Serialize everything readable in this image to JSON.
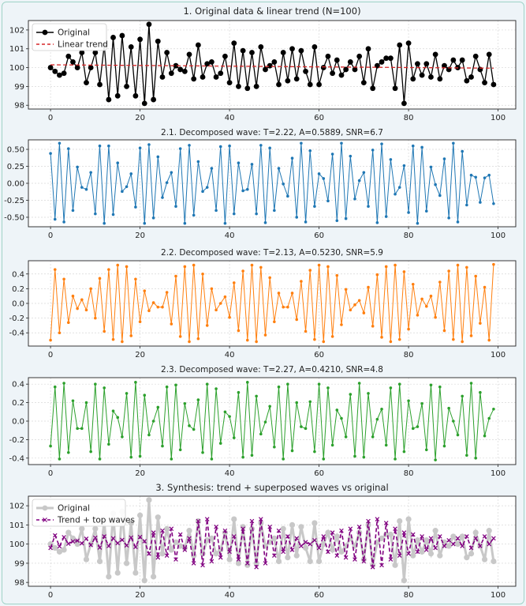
{
  "chart_data": [
    {
      "type": "line",
      "title": "1. Original data & linear trend (N=100)",
      "xlim": [
        -4.95,
        103.95
      ],
      "ylim": [
        97.8,
        102.5
      ],
      "xticks": [
        0,
        20,
        40,
        60,
        80,
        100
      ],
      "yticks": [
        98,
        99,
        100,
        101,
        102
      ],
      "legend_position": "top-left",
      "grid": true,
      "series": [
        {
          "name": "Original",
          "color": "#000000",
          "style": "solid",
          "marker": "circle",
          "y": [
            100.0,
            99.8,
            99.6,
            99.7,
            100.6,
            100.3,
            100.0,
            100.8,
            99.2,
            100.0,
            100.8,
            99.1,
            101.2,
            98.3,
            101.6,
            98.5,
            101.7,
            99.0,
            101.1,
            98.5,
            101.5,
            98.1,
            102.3,
            98.3,
            101.4,
            99.5,
            100.8,
            99.7,
            100.1,
            99.9,
            99.8,
            100.7,
            99.4,
            101.2,
            99.5,
            100.2,
            100.3,
            99.5,
            99.7,
            100.6,
            99.2,
            101.3,
            99.0,
            100.9,
            98.9,
            100.8,
            99.0,
            101.1,
            99.9,
            100.1,
            100.3,
            99.1,
            100.8,
            99.3,
            101.0,
            99.4,
            100.9,
            99.8,
            99.1,
            101.1,
            99.1,
            100.0,
            100.6,
            99.7,
            100.4,
            99.6,
            99.9,
            100.3,
            99.9,
            100.6,
            99.2,
            101.0,
            98.9,
            100.1,
            100.3,
            100.5,
            100.5,
            98.9,
            101.2,
            98.1,
            101.3,
            99.4,
            100.2,
            99.6,
            100.2,
            99.5,
            100.7,
            99.4,
            100.1,
            99.9,
            100.4,
            100.0,
            100.4,
            99.3,
            99.5,
            100.6,
            99.9,
            99.2,
            100.7,
            99.1
          ]
        },
        {
          "name": "Linear trend",
          "color": "#d62728",
          "style": "dashed",
          "y": [
            100.15,
            99.97
          ]
        }
      ]
    },
    {
      "type": "line",
      "title": "2.1. Decomposed wave: T=2.22, A=0.5889, SNR=6.7",
      "xlim": [
        -4.95,
        103.95
      ],
      "ylim": [
        -0.64,
        0.64
      ],
      "xticks": [
        0,
        20,
        40,
        60,
        80,
        100
      ],
      "yticks": [
        "0.50",
        "0.25",
        "0.00",
        "-0.25",
        "-0.50"
      ],
      "yticks_values": [
        0.5,
        0.25,
        0,
        -0.25,
        -0.5
      ],
      "grid": true,
      "series": [
        {
          "color": "#1f77b4",
          "marker": "dot",
          "y": [
            0.44,
            -0.53,
            0.59,
            -0.57,
            0.51,
            -0.4,
            0.24,
            -0.06,
            -0.09,
            0.16,
            -0.45,
            0.55,
            -0.59,
            0.55,
            -0.46,
            0.3,
            -0.12,
            -0.05,
            0.14,
            -0.35,
            0.52,
            -0.59,
            0.57,
            -0.51,
            0.39,
            -0.21,
            0.01,
            0.16,
            -0.34,
            0.51,
            -0.59,
            0.56,
            -0.47,
            0.32,
            -0.12,
            -0.06,
            0.22,
            -0.4,
            0.54,
            -0.59,
            0.55,
            -0.45,
            0.3,
            -0.11,
            -0.09,
            0.28,
            -0.45,
            0.56,
            -0.58,
            0.52,
            -0.4,
            0.22,
            -0.01,
            -0.19,
            0.37,
            -0.5,
            0.59,
            -0.57,
            0.48,
            -0.34,
            0.14,
            0.07,
            -0.26,
            0.43,
            -0.55,
            0.59,
            -0.52,
            0.4,
            -0.23,
            0.04,
            0.16,
            -0.34,
            0.49,
            -0.58,
            0.58,
            -0.49,
            0.35,
            -0.16,
            -0.06,
            0.26,
            -0.43,
            0.55,
            -0.59,
            0.53,
            -0.41,
            0.24,
            -0.02,
            -0.18,
            0.36,
            -0.51,
            0.59,
            -0.57,
            0.47,
            -0.32,
            0.12,
            0.09,
            -0.28,
            0.08,
            0.12,
            -0.3
          ]
        }
      ]
    },
    {
      "type": "line",
      "title": "2.2. Decomposed wave: T=2.13, A=0.5230, SNR=5.9",
      "xlim": [
        -4.95,
        103.95
      ],
      "ylim": [
        -0.58,
        0.58
      ],
      "xticks": [
        0,
        20,
        40,
        60,
        80,
        100
      ],
      "yticks": [
        "0.4",
        "0.2",
        "0.0",
        "-0.2",
        "-0.4"
      ],
      "yticks_values": [
        0.4,
        0.2,
        0,
        -0.2,
        -0.4
      ],
      "grid": true,
      "series": [
        {
          "color": "#ff7f0e",
          "marker": "dot",
          "y": [
            -0.5,
            0.46,
            -0.4,
            0.33,
            -0.26,
            0.1,
            -0.07,
            0.05,
            -0.09,
            0.2,
            -0.2,
            0.34,
            -0.38,
            0.46,
            -0.49,
            0.52,
            -0.52,
            0.5,
            -0.44,
            0.33,
            -0.25,
            0.17,
            -0.1,
            0.01,
            -0.05,
            -0.05,
            0.15,
            -0.28,
            0.37,
            -0.45,
            0.5,
            -0.52,
            0.52,
            -0.48,
            0.4,
            -0.3,
            0.2,
            -0.09,
            0.0,
            0.09,
            -0.19,
            0.28,
            -0.37,
            0.44,
            -0.5,
            0.52,
            -0.52,
            0.49,
            -0.43,
            0.35,
            -0.25,
            0.14,
            -0.05,
            -0.05,
            0.14,
            -0.22,
            0.3,
            -0.38,
            0.45,
            -0.49,
            0.52,
            -0.52,
            0.5,
            -0.45,
            0.38,
            -0.29,
            0.19,
            -0.09,
            -0.02,
            0.04,
            -0.13,
            0.22,
            -0.31,
            0.39,
            -0.46,
            0.5,
            -0.52,
            0.52,
            -0.49,
            0.43,
            -0.35,
            0.26,
            -0.16,
            0.06,
            -0.04,
            0.1,
            -0.19,
            0.29,
            -0.37,
            0.44,
            -0.49,
            0.52,
            -0.52,
            0.49,
            -0.44,
            0.37,
            -0.27,
            0.22,
            -0.5,
            0.53
          ]
        }
      ]
    },
    {
      "type": "line",
      "title": "2.3. Decomposed wave: T=2.27, A=0.4210, SNR=4.8",
      "xlim": [
        -4.95,
        103.95
      ],
      "ylim": [
        -0.47,
        0.47
      ],
      "xticks": [
        0,
        20,
        40,
        60,
        80,
        100
      ],
      "yticks": [
        "0.4",
        "0.2",
        "0.0",
        "-0.2",
        "-0.4"
      ],
      "yticks_values": [
        0.4,
        0.2,
        0,
        -0.2,
        -0.4
      ],
      "grid": true,
      "series": [
        {
          "color": "#2ca02c",
          "marker": "dot",
          "y": [
            -0.27,
            0.37,
            -0.41,
            0.41,
            -0.34,
            0.22,
            -0.08,
            -0.08,
            0.2,
            -0.33,
            0.4,
            -0.41,
            0.36,
            -0.25,
            0.11,
            0.04,
            -0.17,
            0.3,
            -0.39,
            0.42,
            -0.38,
            0.28,
            -0.15,
            0.0,
            0.15,
            -0.27,
            0.37,
            -0.41,
            0.39,
            -0.31,
            0.19,
            -0.05,
            -0.09,
            0.23,
            -0.34,
            0.4,
            -0.41,
            0.35,
            -0.24,
            0.1,
            0.05,
            -0.18,
            0.31,
            -0.39,
            0.42,
            -0.37,
            0.27,
            -0.14,
            -0.01,
            0.16,
            -0.28,
            0.37,
            -0.41,
            0.4,
            -0.32,
            0.2,
            -0.06,
            -0.08,
            0.21,
            -0.33,
            0.4,
            -0.41,
            0.36,
            -0.26,
            0.12,
            0.03,
            -0.17,
            0.29,
            -0.38,
            0.41,
            -0.39,
            0.3,
            -0.17,
            0.02,
            0.13,
            -0.26,
            0.36,
            -0.41,
            0.4,
            -0.33,
            0.22,
            -0.08,
            -0.06,
            0.19,
            -0.31,
            0.39,
            -0.42,
            0.37,
            -0.27,
            0.14,
            0.0,
            -0.15,
            0.27,
            -0.37,
            0.41,
            -0.4,
            0.31,
            -0.16,
            0.03,
            0.13
          ]
        }
      ]
    },
    {
      "type": "line",
      "title": "3. Synthesis: trend + superposed waves vs original",
      "xlim": [
        -4.95,
        103.95
      ],
      "ylim": [
        97.8,
        102.5
      ],
      "xticks": [
        0,
        20,
        40,
        60,
        80,
        100
      ],
      "yticks": [
        98,
        99,
        100,
        101,
        102
      ],
      "legend_position": "top-left",
      "grid": true,
      "series": [
        {
          "name": "Original",
          "color": "#c8c8c8",
          "style": "solid",
          "marker": "circle",
          "use_series_y_from": 0
        },
        {
          "name": "Trend + top waves",
          "color": "#800080",
          "style": "dashed",
          "marker": "x",
          "y": [
            99.8,
            100.45,
            99.88,
            100.36,
            100.02,
            100.14,
            100.18,
            100.04,
            100.28,
            99.95,
            100.33,
            99.82,
            100.4,
            99.9,
            100.3,
            100.05,
            100.22,
            99.93,
            100.34,
            99.85,
            100.37,
            100.15,
            99.5,
            100.6,
            99.3,
            100.7,
            99.4,
            100.8,
            99.2,
            100.5,
            99.7,
            100.3,
            99.0,
            101.2,
            98.9,
            101.3,
            99.1,
            100.9,
            99.3,
            100.7,
            99.6,
            100.4,
            99.2,
            100.8,
            99.0,
            101.2,
            98.8,
            101.3,
            99.0,
            100.9,
            99.4,
            100.7,
            99.6,
            100.4,
            99.7,
            100.3,
            99.9,
            100.1,
            100.0,
            100.2,
            99.8,
            100.4,
            99.6,
            100.6,
            99.4,
            100.7,
            99.3,
            100.8,
            99.2,
            100.9,
            99.1,
            101.2,
            98.8,
            101.3,
            98.9,
            101.1,
            99.2,
            100.8,
            99.4,
            100.6,
            99.5,
            100.5,
            99.6,
            100.4,
            99.7,
            100.3,
            99.8,
            100.4,
            99.9,
            100.2,
            100.0,
            100.3,
            99.9,
            100.4,
            99.8,
            100.3,
            99.9,
            100.4,
            100.0,
            100.3
          ]
        }
      ]
    }
  ]
}
